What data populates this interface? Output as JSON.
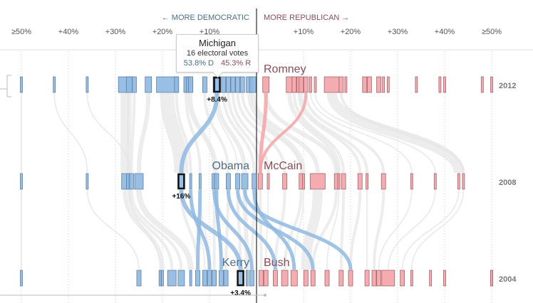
{
  "chart_data": {
    "type": "scatter",
    "title": "",
    "xlabel_left": "← MORE DEMOCRATIC",
    "xlabel_right": "MORE REPUBLICAN →",
    "x_ticks_left": [
      "≥50%",
      "+40%",
      "+30%",
      "+20%",
      "+10%"
    ],
    "x_ticks_right": [
      "+10%",
      "+20%",
      "+30%",
      "+40%",
      "≥50%"
    ],
    "xlim": [
      -50,
      50
    ],
    "colors": {
      "dem": "#8fb8e2",
      "dem_stroke": "#5a7f9e",
      "rep": "#f4a3a8",
      "rep_stroke": "#a0636a",
      "flow": "#e6e6e6",
      "center_line": "#000000"
    },
    "rows": [
      {
        "year": "2012",
        "dem_candidate": "",
        "rep_candidate": "Romney",
        "highlight_margin": -8.4,
        "highlight_label": "+8.4%",
        "states": [
          {
            "m": -50,
            "w": 1
          },
          {
            "m": -43,
            "w": 1
          },
          {
            "m": -36,
            "w": 1
          },
          {
            "m": -28,
            "w": 6
          },
          {
            "m": -27,
            "w": 3
          },
          {
            "m": -26,
            "w": 2
          },
          {
            "m": -23,
            "w": 3
          },
          {
            "m": -19,
            "w": 10
          },
          {
            "m": -17,
            "w": 2
          },
          {
            "m": -15,
            "w": 2
          },
          {
            "m": -14.5,
            "w": 2
          },
          {
            "m": -14,
            "w": 2
          },
          {
            "m": -11,
            "w": 2
          },
          {
            "m": -9,
            "w": 1
          },
          {
            "m": -8.4,
            "w": 3
          },
          {
            "m": -7,
            "w": 2
          },
          {
            "m": -6,
            "w": 2
          },
          {
            "m": -5,
            "w": 2
          },
          {
            "m": -4,
            "w": 2
          },
          {
            "m": -3,
            "w": 2
          },
          {
            "m": -1.5,
            "w": 3
          },
          {
            "m": -0.8,
            "w": 3
          },
          {
            "m": 2,
            "w": 3
          },
          {
            "m": 7,
            "w": 3
          },
          {
            "m": 8,
            "w": 2
          },
          {
            "m": 9,
            "w": 2
          },
          {
            "m": 9.5,
            "w": 2
          },
          {
            "m": 10.5,
            "w": 2
          },
          {
            "m": 11.5,
            "w": 1
          },
          {
            "m": 12.5,
            "w": 1
          },
          {
            "m": 16,
            "w": 7
          },
          {
            "m": 18,
            "w": 2
          },
          {
            "m": 19,
            "w": 1
          },
          {
            "m": 23,
            "w": 2
          },
          {
            "m": 24,
            "w": 2
          },
          {
            "m": 26,
            "w": 2
          },
          {
            "m": 27,
            "w": 1
          },
          {
            "m": 28,
            "w": 1
          },
          {
            "m": 34,
            "w": 1
          },
          {
            "m": 39,
            "w": 1
          },
          {
            "m": 40,
            "w": 1
          },
          {
            "m": 48,
            "w": 1
          },
          {
            "m": 61,
            "w": 1
          }
        ]
      },
      {
        "year": "2008",
        "dem_candidate": "Obama",
        "rep_candidate": "McCain",
        "highlight_margin": -16,
        "highlight_label": "+16%",
        "states": [
          {
            "m": -50,
            "w": 1
          },
          {
            "m": -36,
            "w": 1
          },
          {
            "m": -27,
            "w": 1
          },
          {
            "m": -28,
            "w": 3
          },
          {
            "m": -27.2,
            "w": 2
          },
          {
            "m": -26.6,
            "w": 2
          },
          {
            "m": -25,
            "w": 4
          },
          {
            "m": -16,
            "w": 2
          },
          {
            "m": -14,
            "w": 1
          },
          {
            "m": -12,
            "w": 1
          },
          {
            "m": -9,
            "w": 2
          },
          {
            "m": -8.5,
            "w": 2
          },
          {
            "m": -6,
            "w": 2
          },
          {
            "m": -4,
            "w": 2
          },
          {
            "m": -2.5,
            "w": 3
          },
          {
            "m": -0.5,
            "w": 2
          },
          {
            "m": 0.8,
            "w": 2
          },
          {
            "m": 2.5,
            "w": 1
          },
          {
            "m": 6,
            "w": 2
          },
          {
            "m": 9.5,
            "w": 2
          },
          {
            "m": 10,
            "w": 1
          },
          {
            "m": 13,
            "w": 7
          },
          {
            "m": 17,
            "w": 2
          },
          {
            "m": 17.5,
            "w": 1
          },
          {
            "m": 18.5,
            "w": 2
          },
          {
            "m": 22,
            "w": 2
          },
          {
            "m": 23.5,
            "w": 1
          },
          {
            "m": 27,
            "w": 2
          },
          {
            "m": 33,
            "w": 1
          },
          {
            "m": 38,
            "w": 1
          },
          {
            "m": 43,
            "w": 1
          },
          {
            "m": 44,
            "w": 1
          }
        ]
      },
      {
        "year": "2004",
        "dem_candidate": "Kerry",
        "rep_candidate": "Bush",
        "highlight_margin": -3.4,
        "highlight_label": "+3.4%",
        "states": [
          {
            "m": -50,
            "w": 1
          },
          {
            "m": -25,
            "w": 2
          },
          {
            "m": -20.5,
            "w": 1
          },
          {
            "m": -20,
            "w": 1
          },
          {
            "m": -18,
            "w": 4
          },
          {
            "m": -16,
            "w": 3
          },
          {
            "m": -14,
            "w": 1
          },
          {
            "m": -12.5,
            "w": 2
          },
          {
            "m": -11,
            "w": 2
          },
          {
            "m": -10,
            "w": 2
          },
          {
            "m": -9,
            "w": 2
          },
          {
            "m": -7.5,
            "w": 2
          },
          {
            "m": -6.5,
            "w": 2
          },
          {
            "m": -3.4,
            "w": 3
          },
          {
            "m": -2,
            "w": 1
          },
          {
            "m": -1,
            "w": 2
          },
          {
            "m": 1,
            "w": 2
          },
          {
            "m": 2,
            "w": 2
          },
          {
            "m": 4,
            "w": 2
          },
          {
            "m": 6,
            "w": 3
          },
          {
            "m": 8,
            "w": 3
          },
          {
            "m": 10.5,
            "w": 2
          },
          {
            "m": 12,
            "w": 2
          },
          {
            "m": 15,
            "w": 2
          },
          {
            "m": 18,
            "w": 2
          },
          {
            "m": 20,
            "w": 2
          },
          {
            "m": 23.5,
            "w": 2
          },
          {
            "m": 25,
            "w": 2
          },
          {
            "m": 26,
            "w": 2
          },
          {
            "m": 28,
            "w": 6
          },
          {
            "m": 31,
            "w": 2
          },
          {
            "m": 33,
            "w": 1
          },
          {
            "m": 37,
            "w": 1
          },
          {
            "m": 40,
            "w": 1
          },
          {
            "m": 50,
            "w": 1
          },
          {
            "m": 51,
            "w": 1
          },
          {
            "m": 57,
            "w": 1
          }
        ]
      }
    ]
  },
  "tooltip": {
    "state": "Michigan",
    "electoral_votes": "16 electoral votes",
    "dem_pct": "53.8% D",
    "rep_pct": "45.3% R"
  }
}
